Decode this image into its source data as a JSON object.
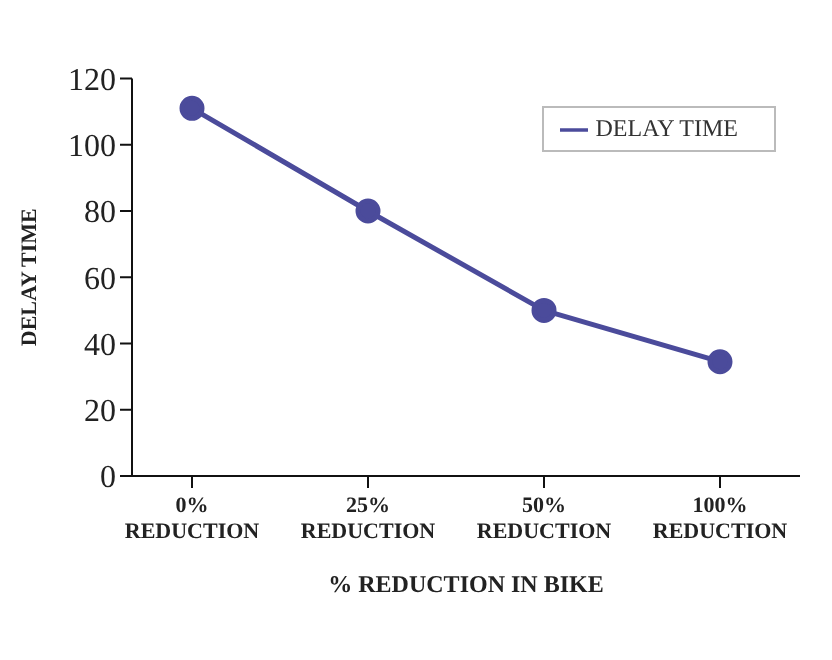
{
  "chart_data": {
    "type": "line",
    "xlabel": "% REDUCTION IN BIKE",
    "ylabel": "DELAY TIME",
    "categories": [
      "0%\nREDUCTION",
      "25%\nREDUCTION",
      "50%\nREDUCTION",
      "100%\nREDUCTION"
    ],
    "series": [
      {
        "name": "DELAY TIME",
        "color": "#4b4b9b",
        "values": [
          111,
          80,
          50,
          34.5
        ]
      }
    ],
    "ylim": [
      0,
      120
    ],
    "yticks": [
      0,
      20,
      40,
      60,
      80,
      100,
      120
    ],
    "grid": false,
    "legend": "top right",
    "marker": "circle",
    "line_style": "solid"
  }
}
